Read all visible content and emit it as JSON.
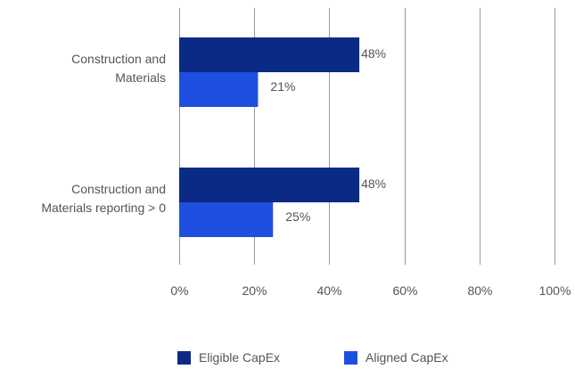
{
  "chart_data": {
    "type": "bar",
    "orientation": "horizontal",
    "categories": [
      [
        "Construction and",
        "Materials"
      ],
      [
        "Construction and",
        "Materials reporting > 0"
      ]
    ],
    "series": [
      {
        "name": "Eligible CapEx",
        "color": "#0a2a85",
        "values": [
          48,
          48
        ],
        "labels": [
          "48%",
          "48%"
        ]
      },
      {
        "name": "Aligned CapEx",
        "color": "#1f4fe0",
        "values": [
          21,
          25
        ],
        "labels": [
          "21%",
          "25%"
        ]
      }
    ],
    "xlim": [
      0,
      100
    ],
    "ticks": [
      0,
      20,
      40,
      60,
      80,
      100
    ],
    "tick_labels": [
      "0%",
      "20%",
      "40%",
      "60%",
      "80%",
      "100%"
    ],
    "grid": true,
    "legend_position": "bottom"
  }
}
